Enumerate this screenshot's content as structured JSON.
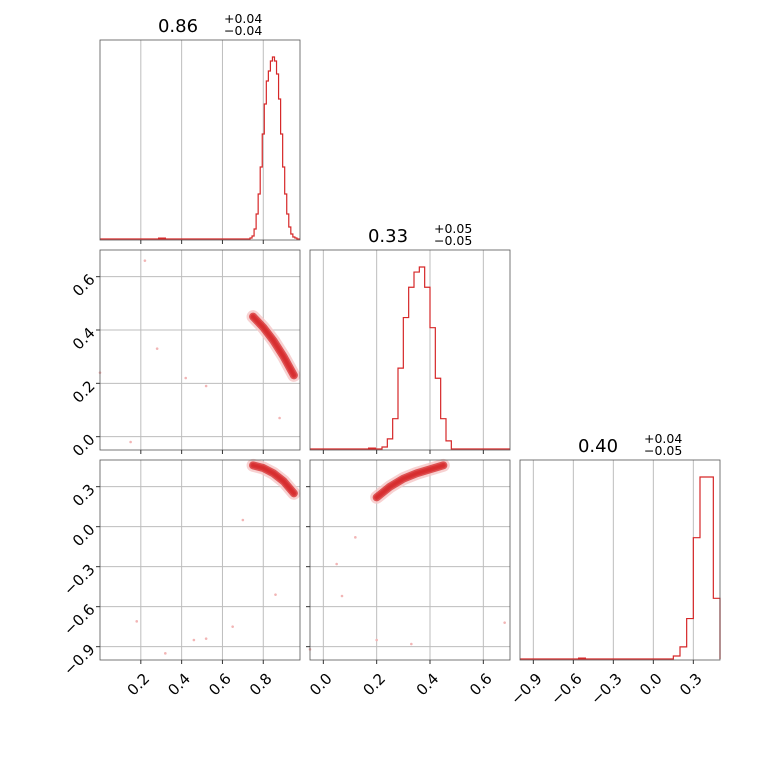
{
  "chart_data": {
    "type": "corner",
    "accent_color": "#d62728",
    "grid": true,
    "parameters": [
      {
        "title": {
          "value": "0.86",
          "plus": "+0.04",
          "minus": "−0.04"
        },
        "range": [
          0.0,
          0.98
        ],
        "ticks": [
          0.2,
          0.4,
          0.6,
          0.8
        ],
        "tick_labels": [
          "0.2",
          "0.4",
          "0.6",
          "0.8"
        ]
      },
      {
        "title": {
          "value": "0.33",
          "plus": "+0.05",
          "minus": "−0.05"
        },
        "range": [
          -0.05,
          0.7
        ],
        "ticks": [
          0.0,
          0.2,
          0.4,
          0.6
        ],
        "tick_labels": [
          "0.0",
          "0.2",
          "0.4",
          "0.6"
        ]
      },
      {
        "title": {
          "value": "0.40",
          "plus": "+0.04",
          "minus": "−0.05"
        },
        "range": [
          -1.0,
          0.5
        ],
        "ticks": [
          -0.9,
          -0.6,
          -0.3,
          0.0,
          0.3
        ],
        "tick_labels": [
          "−0.9",
          "−0.6",
          "−0.3",
          "0.0",
          "0.3"
        ]
      }
    ],
    "histograms": [
      {
        "edges": [
          0.735,
          0.745,
          0.755,
          0.765,
          0.775,
          0.785,
          0.795,
          0.805,
          0.815,
          0.825,
          0.835,
          0.845,
          0.855,
          0.865,
          0.875,
          0.885,
          0.895,
          0.905,
          0.915,
          0.925,
          0.935,
          0.945,
          0.955,
          0.965,
          0.975
        ],
        "counts": [
          1,
          3,
          10,
          25,
          45,
          72,
          105,
          135,
          158,
          168,
          178,
          182,
          178,
          165,
          140,
          105,
          72,
          45,
          25,
          12,
          5,
          2,
          1,
          0
        ]
      },
      {
        "edges": [
          0.22,
          0.24,
          0.26,
          0.28,
          0.3,
          0.32,
          0.34,
          0.36,
          0.38,
          0.4,
          0.42,
          0.44,
          0.46,
          0.48
        ],
        "counts": [
          2,
          10,
          30,
          80,
          130,
          160,
          175,
          180,
          160,
          120,
          70,
          30,
          8
        ]
      },
      {
        "edges": [
          0.15,
          0.2,
          0.25,
          0.3,
          0.35,
          0.4,
          0.45,
          0.5
        ],
        "counts": [
          3,
          12,
          40,
          120,
          180,
          180,
          60
        ]
      }
    ],
    "pair_curves": [
      {
        "x_param": 0,
        "y_param": 1,
        "x": [
          0.75,
          0.8,
          0.85,
          0.9,
          0.95
        ],
        "y": [
          0.45,
          0.41,
          0.36,
          0.3,
          0.23
        ]
      },
      {
        "x_param": 0,
        "y_param": 2,
        "x": [
          0.75,
          0.8,
          0.85,
          0.9,
          0.95
        ],
        "y": [
          0.46,
          0.44,
          0.4,
          0.34,
          0.25
        ]
      },
      {
        "x_param": 1,
        "y_param": 2,
        "x": [
          0.2,
          0.25,
          0.3,
          0.35,
          0.4,
          0.45
        ],
        "y": [
          0.22,
          0.3,
          0.36,
          0.4,
          0.43,
          0.46
        ]
      }
    ],
    "scatter_outliers": [
      {
        "x_param": 0,
        "y_param": 1,
        "points": [
          [
            0.15,
            -0.02
          ],
          [
            0.28,
            0.33
          ],
          [
            0.42,
            0.22
          ],
          [
            0.52,
            0.19
          ],
          [
            0.88,
            0.07
          ],
          [
            0.22,
            0.66
          ],
          [
            0.0,
            0.24
          ]
        ]
      },
      {
        "x_param": 0,
        "y_param": 2,
        "points": [
          [
            0.18,
            -0.71
          ],
          [
            0.32,
            -0.95
          ],
          [
            0.46,
            -0.85
          ],
          [
            0.52,
            -0.84
          ],
          [
            0.65,
            -0.75
          ],
          [
            0.7,
            0.05
          ],
          [
            0.86,
            -0.51
          ]
        ]
      },
      {
        "x_param": 1,
        "y_param": 2,
        "points": [
          [
            0.05,
            -0.28
          ],
          [
            0.12,
            -0.08
          ],
          [
            0.07,
            -0.52
          ],
          [
            0.2,
            -0.85
          ],
          [
            0.33,
            -0.88
          ],
          [
            0.68,
            -0.72
          ],
          [
            -0.05,
            -0.92
          ]
        ]
      }
    ]
  }
}
